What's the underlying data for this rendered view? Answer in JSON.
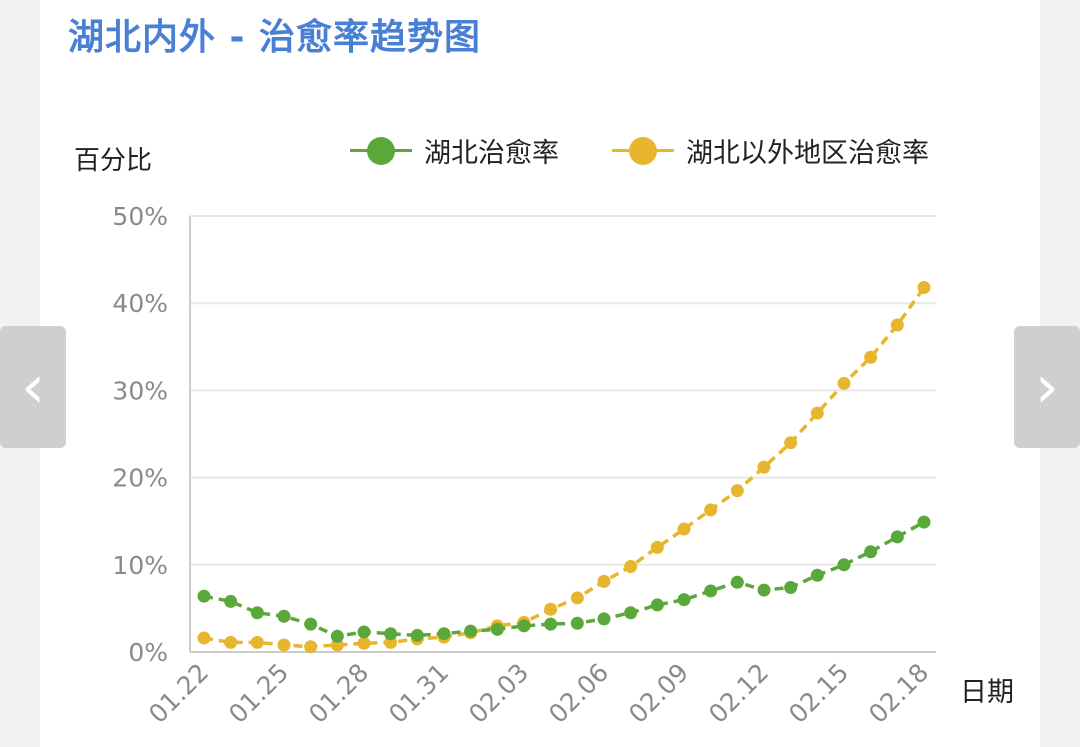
{
  "chart_data": {
    "type": "line",
    "title": "湖北内外 - 治愈率趋势图",
    "ylabel": "百分比",
    "xlabel": "日期",
    "ylim": [
      0,
      50
    ],
    "y_ticks": [
      "0%",
      "10%",
      "20%",
      "30%",
      "40%",
      "50%"
    ],
    "x_tick_labels": [
      "01.22",
      "01.25",
      "01.28",
      "01.31",
      "02.03",
      "02.06",
      "02.09",
      "02.12",
      "02.15",
      "02.18"
    ],
    "x": [
      "01.22",
      "01.23",
      "01.24",
      "01.25",
      "01.26",
      "01.27",
      "01.28",
      "01.29",
      "01.30",
      "01.31",
      "02.01",
      "02.02",
      "02.03",
      "02.04",
      "02.05",
      "02.06",
      "02.07",
      "02.08",
      "02.09",
      "02.10",
      "02.11",
      "02.12",
      "02.13",
      "02.14",
      "02.15",
      "02.16",
      "02.17",
      "02.18"
    ],
    "grid": true,
    "legend_position": "top-right",
    "series": [
      {
        "name": "湖北治愈率",
        "color": "#5aa83a",
        "values": [
          6.4,
          5.8,
          4.5,
          4.1,
          3.2,
          1.8,
          2.3,
          2.1,
          1.9,
          2.1,
          2.4,
          2.6,
          3.0,
          3.2,
          3.3,
          3.8,
          4.5,
          5.4,
          6.0,
          7.0,
          8.0,
          7.1,
          7.4,
          8.8,
          10.0,
          11.5,
          13.2,
          14.9
        ]
      },
      {
        "name": "湖北以外地区治愈率",
        "color": "#e8b52e",
        "values": [
          1.6,
          1.1,
          1.1,
          0.8,
          0.6,
          0.8,
          1.0,
          1.1,
          1.5,
          1.7,
          2.2,
          3.0,
          3.4,
          4.9,
          6.2,
          8.1,
          9.8,
          12.0,
          14.1,
          16.3,
          18.5,
          21.2,
          24.0,
          27.4,
          30.8,
          33.8,
          37.5,
          41.8
        ]
      }
    ]
  },
  "nav": {
    "prev_glyph": "‹",
    "next_glyph": "›"
  }
}
